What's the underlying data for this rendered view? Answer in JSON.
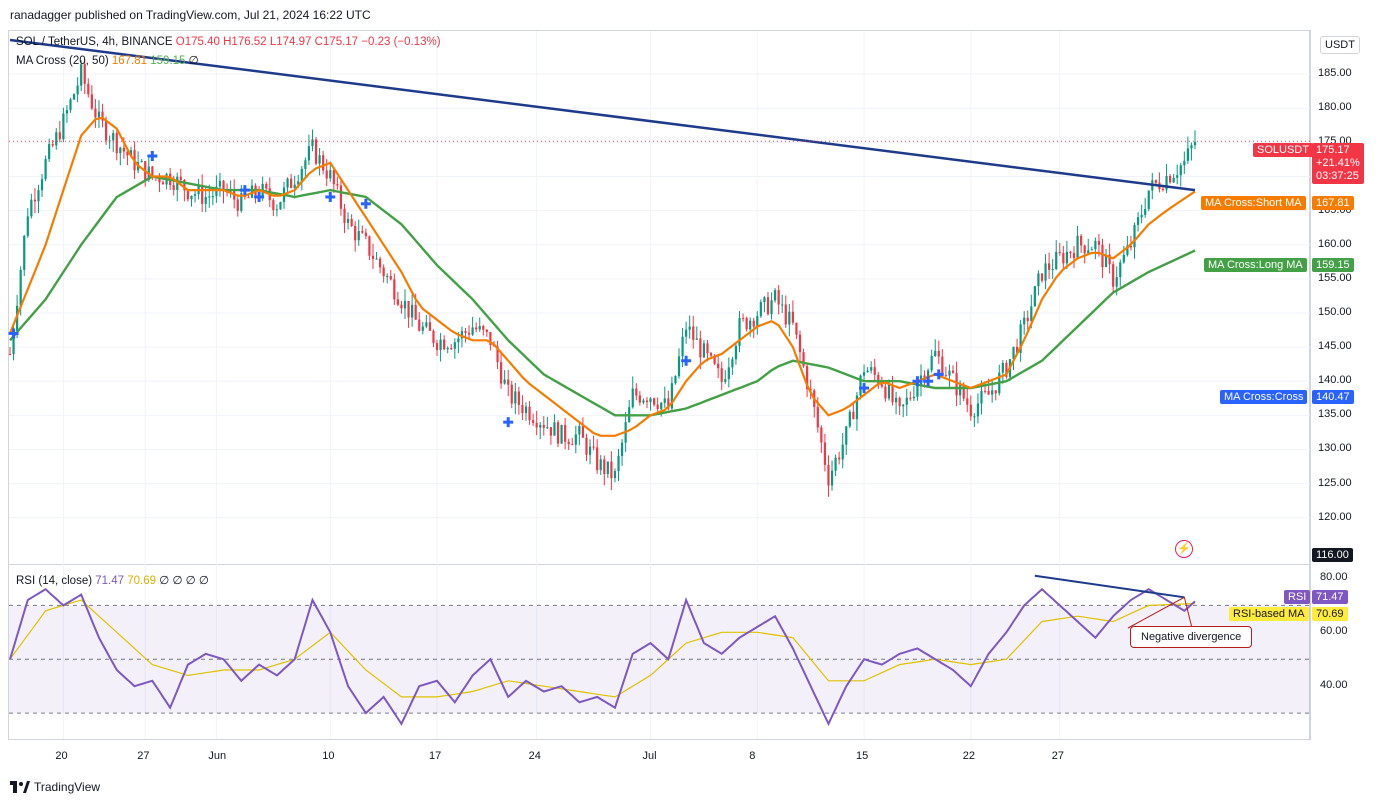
{
  "header": {
    "published": "ranadagger published on TradingView.com, Jul 21, 2024 16:22 UTC"
  },
  "legend": {
    "symbol": "SOL / TetherUS, 4h, BINANCE",
    "open": "O175.40",
    "high": "H176.52",
    "low": "L174.97",
    "close": "C175.17",
    "change": "−0.23 (−0.13%)",
    "ma_name": "MA Cross (20, 50)",
    "ma_short": "167.81",
    "ma_long": "159.15",
    "ma_extra": "∅"
  },
  "rsi_legend": {
    "name": "RSI (14, close)",
    "rsi": "71.47",
    "rsi_ma": "70.69",
    "extras": "∅ ∅ ∅ ∅"
  },
  "currency": "USDT",
  "price_axis": {
    "ticks": [
      "185.00",
      "180.00",
      "175.00",
      "170.00",
      "165.00",
      "160.00",
      "155.00",
      "150.00",
      "145.00",
      "140.00",
      "135.00",
      "130.00",
      "125.00",
      "120.00"
    ]
  },
  "rsi_axis": {
    "ticks": [
      "80.00",
      "60.00",
      "40.00"
    ]
  },
  "price_labels": {
    "last": {
      "name": "SOLUSDT",
      "value": "175.17",
      "change": "+21.41%",
      "countdown": "03:37:25"
    },
    "short_ma": {
      "name": "MA Cross:Short MA",
      "value": "167.81"
    },
    "long_ma": {
      "name": "MA Cross:Long MA",
      "value": "159.15"
    },
    "cross": {
      "name": "MA Cross:Cross",
      "value": "140.47"
    },
    "crosshair": "116.00"
  },
  "rsi_labels": {
    "rsi": {
      "name": "RSI",
      "value": "71.47"
    },
    "rsi_ma": {
      "name": "RSI-based MA",
      "value": "70.69"
    }
  },
  "annotation": "Negative divergence",
  "time_axis": {
    "labels": [
      "20",
      "27",
      "Jun",
      "10",
      "17",
      "24",
      "Jul",
      "8",
      "15",
      "22",
      "27"
    ]
  },
  "branding": "TradingView",
  "colors": {
    "up": "#089981",
    "down": "#f23645",
    "short_ma": "#f57c00",
    "long_ma": "#43a047",
    "trendline": "#1e3a8a",
    "rsi": "#7e57c2",
    "rsi_ma": "#e0c200",
    "cross": "#2962ff"
  },
  "chart_data": {
    "type": "candlestick",
    "interval": "4h",
    "price_range": [
      116,
      190
    ],
    "rsi_range": [
      20,
      85
    ],
    "rsi_levels": [
      70,
      50,
      30
    ],
    "close_path": [
      [
        0,
        144
      ],
      [
        5,
        165
      ],
      [
        10,
        172
      ],
      [
        15,
        178
      ],
      [
        20,
        185
      ],
      [
        25,
        178
      ],
      [
        30,
        175
      ],
      [
        35,
        172
      ],
      [
        40,
        170
      ],
      [
        45,
        170
      ],
      [
        50,
        168
      ],
      [
        55,
        167
      ],
      [
        60,
        168
      ],
      [
        65,
        166
      ],
      [
        70,
        168
      ],
      [
        75,
        166
      ],
      [
        80,
        170
      ],
      [
        85,
        174
      ],
      [
        90,
        170
      ],
      [
        95,
        163
      ],
      [
        100,
        160
      ],
      [
        105,
        156
      ],
      [
        110,
        152
      ],
      [
        115,
        148
      ],
      [
        120,
        146
      ],
      [
        125,
        146
      ],
      [
        130,
        148
      ],
      [
        135,
        146
      ],
      [
        140,
        138
      ],
      [
        145,
        136
      ],
      [
        150,
        134
      ],
      [
        155,
        132
      ],
      [
        160,
        132
      ],
      [
        165,
        128
      ],
      [
        170,
        126
      ],
      [
        175,
        138
      ],
      [
        180,
        138
      ],
      [
        185,
        136
      ],
      [
        190,
        148
      ],
      [
        195,
        144
      ],
      [
        200,
        140
      ],
      [
        205,
        148
      ],
      [
        210,
        150
      ],
      [
        215,
        152
      ],
      [
        220,
        148
      ],
      [
        225,
        138
      ],
      [
        230,
        126
      ],
      [
        235,
        132
      ],
      [
        240,
        142
      ],
      [
        245,
        140
      ],
      [
        250,
        135
      ],
      [
        255,
        140
      ],
      [
        260,
        144
      ],
      [
        265,
        140
      ],
      [
        270,
        136
      ],
      [
        275,
        138
      ],
      [
        280,
        142
      ],
      [
        285,
        148
      ],
      [
        290,
        156
      ],
      [
        295,
        158
      ],
      [
        300,
        160
      ],
      [
        305,
        160
      ],
      [
        310,
        155
      ],
      [
        315,
        160
      ],
      [
        320,
        168
      ],
      [
        325,
        170
      ],
      [
        330,
        172
      ],
      [
        333,
        175.17
      ]
    ],
    "short_ma_path": [
      [
        0,
        147
      ],
      [
        10,
        160
      ],
      [
        20,
        176
      ],
      [
        25,
        179
      ],
      [
        30,
        177
      ],
      [
        35,
        172
      ],
      [
        40,
        170
      ],
      [
        45,
        170
      ],
      [
        50,
        168
      ],
      [
        55,
        168
      ],
      [
        60,
        168
      ],
      [
        65,
        167
      ],
      [
        70,
        168
      ],
      [
        75,
        167
      ],
      [
        80,
        168
      ],
      [
        85,
        171
      ],
      [
        90,
        172
      ],
      [
        95,
        168
      ],
      [
        100,
        164
      ],
      [
        105,
        160
      ],
      [
        110,
        156
      ],
      [
        115,
        151
      ],
      [
        120,
        149
      ],
      [
        125,
        147
      ],
      [
        130,
        146
      ],
      [
        135,
        146
      ],
      [
        140,
        143
      ],
      [
        145,
        140
      ],
      [
        150,
        138
      ],
      [
        155,
        136
      ],
      [
        160,
        134
      ],
      [
        165,
        132
      ],
      [
        170,
        132
      ],
      [
        175,
        133
      ],
      [
        180,
        135
      ],
      [
        185,
        136
      ],
      [
        190,
        140
      ],
      [
        195,
        143
      ],
      [
        200,
        144
      ],
      [
        205,
        146
      ],
      [
        210,
        148
      ],
      [
        215,
        149
      ],
      [
        220,
        145
      ],
      [
        225,
        138
      ],
      [
        230,
        135
      ],
      [
        235,
        136
      ],
      [
        240,
        138
      ],
      [
        245,
        140
      ],
      [
        250,
        139
      ],
      [
        255,
        140
      ],
      [
        260,
        141
      ],
      [
        265,
        140
      ],
      [
        270,
        139
      ],
      [
        275,
        140
      ],
      [
        280,
        141
      ],
      [
        285,
        146
      ],
      [
        290,
        152
      ],
      [
        295,
        156
      ],
      [
        300,
        158
      ],
      [
        305,
        159
      ],
      [
        310,
        158
      ],
      [
        315,
        160
      ],
      [
        320,
        163
      ],
      [
        325,
        165
      ],
      [
        333,
        167.81
      ]
    ],
    "long_ma_path": [
      [
        0,
        146
      ],
      [
        10,
        152
      ],
      [
        20,
        160
      ],
      [
        30,
        167
      ],
      [
        40,
        170
      ],
      [
        50,
        169
      ],
      [
        60,
        168
      ],
      [
        70,
        168
      ],
      [
        80,
        167
      ],
      [
        90,
        168
      ],
      [
        100,
        167
      ],
      [
        110,
        163
      ],
      [
        120,
        157
      ],
      [
        130,
        152
      ],
      [
        140,
        146
      ],
      [
        150,
        141
      ],
      [
        160,
        138
      ],
      [
        170,
        135
      ],
      [
        180,
        135
      ],
      [
        190,
        136
      ],
      [
        200,
        138
      ],
      [
        210,
        140
      ],
      [
        215,
        142
      ],
      [
        220,
        143
      ],
      [
        230,
        142
      ],
      [
        240,
        140
      ],
      [
        250,
        140
      ],
      [
        260,
        139
      ],
      [
        270,
        139
      ],
      [
        280,
        140
      ],
      [
        290,
        143
      ],
      [
        300,
        148
      ],
      [
        310,
        153
      ],
      [
        320,
        156
      ],
      [
        333,
        159.15
      ]
    ],
    "cross_markers": [
      [
        1,
        147
      ],
      [
        40,
        173
      ],
      [
        66,
        168
      ],
      [
        70,
        167
      ],
      [
        90,
        167
      ],
      [
        100,
        166
      ],
      [
        140,
        134
      ],
      [
        190,
        143
      ],
      [
        240,
        139
      ],
      [
        255,
        140
      ],
      [
        258,
        140
      ],
      [
        261,
        141
      ]
    ],
    "trendline": [
      [
        0,
        190
      ],
      [
        333,
        168
      ]
    ],
    "rsi_path": [
      [
        0,
        50
      ],
      [
        5,
        72
      ],
      [
        10,
        76
      ],
      [
        15,
        70
      ],
      [
        20,
        74
      ],
      [
        25,
        58
      ],
      [
        30,
        46
      ],
      [
        35,
        40
      ],
      [
        40,
        42
      ],
      [
        45,
        32
      ],
      [
        50,
        48
      ],
      [
        55,
        52
      ],
      [
        60,
        50
      ],
      [
        65,
        42
      ],
      [
        70,
        48
      ],
      [
        75,
        44
      ],
      [
        80,
        50
      ],
      [
        85,
        72
      ],
      [
        90,
        60
      ],
      [
        95,
        40
      ],
      [
        100,
        30
      ],
      [
        105,
        36
      ],
      [
        110,
        26
      ],
      [
        115,
        40
      ],
      [
        120,
        42
      ],
      [
        125,
        34
      ],
      [
        130,
        44
      ],
      [
        135,
        50
      ],
      [
        140,
        36
      ],
      [
        145,
        42
      ],
      [
        150,
        38
      ],
      [
        155,
        40
      ],
      [
        160,
        34
      ],
      [
        165,
        36
      ],
      [
        170,
        32
      ],
      [
        175,
        52
      ],
      [
        180,
        56
      ],
      [
        185,
        50
      ],
      [
        190,
        72
      ],
      [
        195,
        56
      ],
      [
        200,
        52
      ],
      [
        205,
        58
      ],
      [
        210,
        62
      ],
      [
        215,
        66
      ],
      [
        220,
        54
      ],
      [
        225,
        40
      ],
      [
        230,
        26
      ],
      [
        235,
        40
      ],
      [
        240,
        50
      ],
      [
        245,
        48
      ],
      [
        250,
        52
      ],
      [
        255,
        54
      ],
      [
        260,
        50
      ],
      [
        265,
        46
      ],
      [
        270,
        40
      ],
      [
        275,
        52
      ],
      [
        280,
        60
      ],
      [
        285,
        70
      ],
      [
        290,
        76
      ],
      [
        295,
        70
      ],
      [
        300,
        64
      ],
      [
        305,
        58
      ],
      [
        310,
        66
      ],
      [
        315,
        72
      ],
      [
        320,
        76
      ],
      [
        325,
        72
      ],
      [
        330,
        68
      ],
      [
        333,
        71.47
      ]
    ],
    "rsi_ma_path": [
      [
        0,
        50
      ],
      [
        10,
        68
      ],
      [
        20,
        72
      ],
      [
        30,
        60
      ],
      [
        40,
        48
      ],
      [
        50,
        44
      ],
      [
        60,
        46
      ],
      [
        70,
        46
      ],
      [
        80,
        50
      ],
      [
        90,
        60
      ],
      [
        100,
        46
      ],
      [
        110,
        36
      ],
      [
        120,
        36
      ],
      [
        130,
        38
      ],
      [
        140,
        42
      ],
      [
        150,
        40
      ],
      [
        160,
        38
      ],
      [
        170,
        36
      ],
      [
        180,
        44
      ],
      [
        190,
        56
      ],
      [
        200,
        60
      ],
      [
        210,
        60
      ],
      [
        220,
        58
      ],
      [
        230,
        42
      ],
      [
        240,
        42
      ],
      [
        250,
        48
      ],
      [
        260,
        50
      ],
      [
        270,
        48
      ],
      [
        280,
        50
      ],
      [
        290,
        64
      ],
      [
        300,
        66
      ],
      [
        310,
        64
      ],
      [
        320,
        70
      ],
      [
        333,
        70.69
      ]
    ]
  }
}
